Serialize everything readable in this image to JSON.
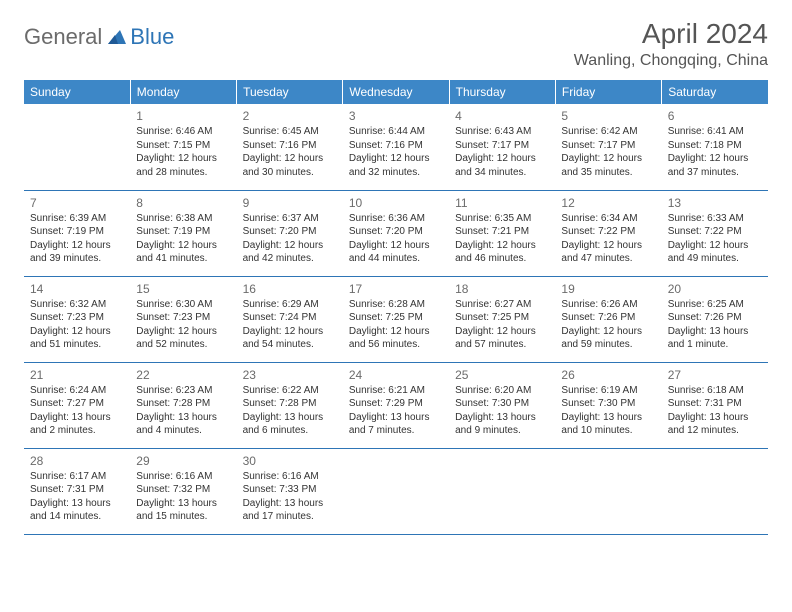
{
  "logo": {
    "general": "General",
    "blue": "Blue"
  },
  "title": "April 2024",
  "location": "Wanling, Chongqing, China",
  "colors": {
    "header_bg": "#3d87c7",
    "border": "#2e75b6",
    "title_text": "#555555",
    "body_text": "#333333"
  },
  "weekdays": [
    "Sunday",
    "Monday",
    "Tuesday",
    "Wednesday",
    "Thursday",
    "Friday",
    "Saturday"
  ],
  "weeks": [
    [
      {
        "n": "",
        "sunrise": "",
        "sunset": "",
        "daylight": ""
      },
      {
        "n": "1",
        "sunrise": "Sunrise: 6:46 AM",
        "sunset": "Sunset: 7:15 PM",
        "daylight": "Daylight: 12 hours and 28 minutes."
      },
      {
        "n": "2",
        "sunrise": "Sunrise: 6:45 AM",
        "sunset": "Sunset: 7:16 PM",
        "daylight": "Daylight: 12 hours and 30 minutes."
      },
      {
        "n": "3",
        "sunrise": "Sunrise: 6:44 AM",
        "sunset": "Sunset: 7:16 PM",
        "daylight": "Daylight: 12 hours and 32 minutes."
      },
      {
        "n": "4",
        "sunrise": "Sunrise: 6:43 AM",
        "sunset": "Sunset: 7:17 PM",
        "daylight": "Daylight: 12 hours and 34 minutes."
      },
      {
        "n": "5",
        "sunrise": "Sunrise: 6:42 AM",
        "sunset": "Sunset: 7:17 PM",
        "daylight": "Daylight: 12 hours and 35 minutes."
      },
      {
        "n": "6",
        "sunrise": "Sunrise: 6:41 AM",
        "sunset": "Sunset: 7:18 PM",
        "daylight": "Daylight: 12 hours and 37 minutes."
      }
    ],
    [
      {
        "n": "7",
        "sunrise": "Sunrise: 6:39 AM",
        "sunset": "Sunset: 7:19 PM",
        "daylight": "Daylight: 12 hours and 39 minutes."
      },
      {
        "n": "8",
        "sunrise": "Sunrise: 6:38 AM",
        "sunset": "Sunset: 7:19 PM",
        "daylight": "Daylight: 12 hours and 41 minutes."
      },
      {
        "n": "9",
        "sunrise": "Sunrise: 6:37 AM",
        "sunset": "Sunset: 7:20 PM",
        "daylight": "Daylight: 12 hours and 42 minutes."
      },
      {
        "n": "10",
        "sunrise": "Sunrise: 6:36 AM",
        "sunset": "Sunset: 7:20 PM",
        "daylight": "Daylight: 12 hours and 44 minutes."
      },
      {
        "n": "11",
        "sunrise": "Sunrise: 6:35 AM",
        "sunset": "Sunset: 7:21 PM",
        "daylight": "Daylight: 12 hours and 46 minutes."
      },
      {
        "n": "12",
        "sunrise": "Sunrise: 6:34 AM",
        "sunset": "Sunset: 7:22 PM",
        "daylight": "Daylight: 12 hours and 47 minutes."
      },
      {
        "n": "13",
        "sunrise": "Sunrise: 6:33 AM",
        "sunset": "Sunset: 7:22 PM",
        "daylight": "Daylight: 12 hours and 49 minutes."
      }
    ],
    [
      {
        "n": "14",
        "sunrise": "Sunrise: 6:32 AM",
        "sunset": "Sunset: 7:23 PM",
        "daylight": "Daylight: 12 hours and 51 minutes."
      },
      {
        "n": "15",
        "sunrise": "Sunrise: 6:30 AM",
        "sunset": "Sunset: 7:23 PM",
        "daylight": "Daylight: 12 hours and 52 minutes."
      },
      {
        "n": "16",
        "sunrise": "Sunrise: 6:29 AM",
        "sunset": "Sunset: 7:24 PM",
        "daylight": "Daylight: 12 hours and 54 minutes."
      },
      {
        "n": "17",
        "sunrise": "Sunrise: 6:28 AM",
        "sunset": "Sunset: 7:25 PM",
        "daylight": "Daylight: 12 hours and 56 minutes."
      },
      {
        "n": "18",
        "sunrise": "Sunrise: 6:27 AM",
        "sunset": "Sunset: 7:25 PM",
        "daylight": "Daylight: 12 hours and 57 minutes."
      },
      {
        "n": "19",
        "sunrise": "Sunrise: 6:26 AM",
        "sunset": "Sunset: 7:26 PM",
        "daylight": "Daylight: 12 hours and 59 minutes."
      },
      {
        "n": "20",
        "sunrise": "Sunrise: 6:25 AM",
        "sunset": "Sunset: 7:26 PM",
        "daylight": "Daylight: 13 hours and 1 minute."
      }
    ],
    [
      {
        "n": "21",
        "sunrise": "Sunrise: 6:24 AM",
        "sunset": "Sunset: 7:27 PM",
        "daylight": "Daylight: 13 hours and 2 minutes."
      },
      {
        "n": "22",
        "sunrise": "Sunrise: 6:23 AM",
        "sunset": "Sunset: 7:28 PM",
        "daylight": "Daylight: 13 hours and 4 minutes."
      },
      {
        "n": "23",
        "sunrise": "Sunrise: 6:22 AM",
        "sunset": "Sunset: 7:28 PM",
        "daylight": "Daylight: 13 hours and 6 minutes."
      },
      {
        "n": "24",
        "sunrise": "Sunrise: 6:21 AM",
        "sunset": "Sunset: 7:29 PM",
        "daylight": "Daylight: 13 hours and 7 minutes."
      },
      {
        "n": "25",
        "sunrise": "Sunrise: 6:20 AM",
        "sunset": "Sunset: 7:30 PM",
        "daylight": "Daylight: 13 hours and 9 minutes."
      },
      {
        "n": "26",
        "sunrise": "Sunrise: 6:19 AM",
        "sunset": "Sunset: 7:30 PM",
        "daylight": "Daylight: 13 hours and 10 minutes."
      },
      {
        "n": "27",
        "sunrise": "Sunrise: 6:18 AM",
        "sunset": "Sunset: 7:31 PM",
        "daylight": "Daylight: 13 hours and 12 minutes."
      }
    ],
    [
      {
        "n": "28",
        "sunrise": "Sunrise: 6:17 AM",
        "sunset": "Sunset: 7:31 PM",
        "daylight": "Daylight: 13 hours and 14 minutes."
      },
      {
        "n": "29",
        "sunrise": "Sunrise: 6:16 AM",
        "sunset": "Sunset: 7:32 PM",
        "daylight": "Daylight: 13 hours and 15 minutes."
      },
      {
        "n": "30",
        "sunrise": "Sunrise: 6:16 AM",
        "sunset": "Sunset: 7:33 PM",
        "daylight": "Daylight: 13 hours and 17 minutes."
      },
      {
        "n": "",
        "sunrise": "",
        "sunset": "",
        "daylight": ""
      },
      {
        "n": "",
        "sunrise": "",
        "sunset": "",
        "daylight": ""
      },
      {
        "n": "",
        "sunrise": "",
        "sunset": "",
        "daylight": ""
      },
      {
        "n": "",
        "sunrise": "",
        "sunset": "",
        "daylight": ""
      }
    ]
  ]
}
